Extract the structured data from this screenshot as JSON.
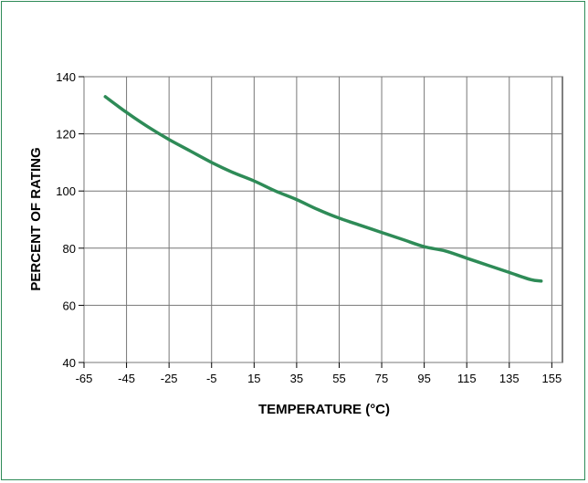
{
  "chart_data": {
    "type": "line",
    "title": "",
    "xlabel": "TEMPERATURE (°C)",
    "ylabel": "PERCENT OF RATING",
    "xlim": [
      -65,
      160
    ],
    "ylim": [
      40,
      140
    ],
    "x_ticks": [
      -65,
      -45,
      -25,
      -5,
      15,
      35,
      55,
      75,
      95,
      115,
      135,
      155
    ],
    "y_ticks": [
      40,
      60,
      80,
      100,
      120,
      140
    ],
    "grid": true,
    "legend": "none",
    "line_color": "#2e8b57",
    "frame_color": "#2e8b57",
    "series": [
      {
        "x": [
          -55,
          -45,
          -35,
          -25,
          -15,
          -5,
          5,
          15,
          25,
          35,
          45,
          55,
          65,
          75,
          85,
          95,
          105,
          115,
          125,
          135,
          145,
          150
        ],
        "y": [
          133,
          127.5,
          122.5,
          118,
          114,
          110,
          106.5,
          103.5,
          100,
          97,
          93.5,
          90.5,
          88,
          85.5,
          83,
          80.5,
          79,
          76.5,
          74,
          71.5,
          69,
          68.5
        ]
      }
    ]
  }
}
